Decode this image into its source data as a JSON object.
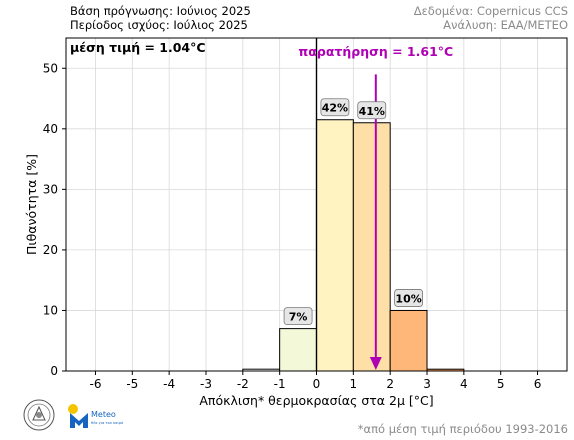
{
  "header": {
    "forecast_base": "Βάση πρόγνωσης: Ιούνιος 2025",
    "valid_period": "Περίοδος ισχύος: Ιούλιος 2025",
    "data_source": "Δεδομένα: Copernicus CCS",
    "analysis": "Ανάλυση: ΕΑΑ/METEO"
  },
  "footnote": "*από μέση τιμή περιόδου 1993-2016",
  "logos": {
    "meteo_text": "Meteo",
    "meteo_sub": "θέα για τον καιρό"
  },
  "chart_data": {
    "type": "bar",
    "xlabel": "Απόκλιση* θερμοκρασίας στα 2μ [°C]",
    "ylabel": "Πιθανότητα [%]",
    "xlim": [
      -6.8,
      6.8
    ],
    "ylim": [
      0,
      55
    ],
    "xticks": [
      -6,
      -5,
      -4,
      -3,
      -2,
      -1,
      0,
      1,
      2,
      3,
      4,
      5,
      6
    ],
    "yticks": [
      0,
      10,
      20,
      30,
      40,
      50
    ],
    "grid": true,
    "zero_line": 0,
    "bins": [
      {
        "from": -2,
        "to": -1,
        "value": 0.3,
        "color": "#ffffff",
        "label": ""
      },
      {
        "from": -1,
        "to": 0,
        "value": 7,
        "color": "#f2f8d8",
        "label": "7%"
      },
      {
        "from": 0,
        "to": 1,
        "value": 41.5,
        "color": "#fff3c2",
        "label": "42%"
      },
      {
        "from": 1,
        "to": 2,
        "value": 41,
        "color": "#ffdfa8",
        "label": "41%"
      },
      {
        "from": 2,
        "to": 3,
        "value": 10,
        "color": "#ffb679",
        "label": "10%"
      },
      {
        "from": 3,
        "to": 4,
        "value": 0.3,
        "color": "#ff9e59",
        "label": ""
      }
    ],
    "mean_label": "μέση τιμή = 1.04°C",
    "mean_value": 1.04,
    "observation": {
      "value": 1.61,
      "label": "παρατήρηση = 1.61°C",
      "color": "#b000b5"
    }
  }
}
